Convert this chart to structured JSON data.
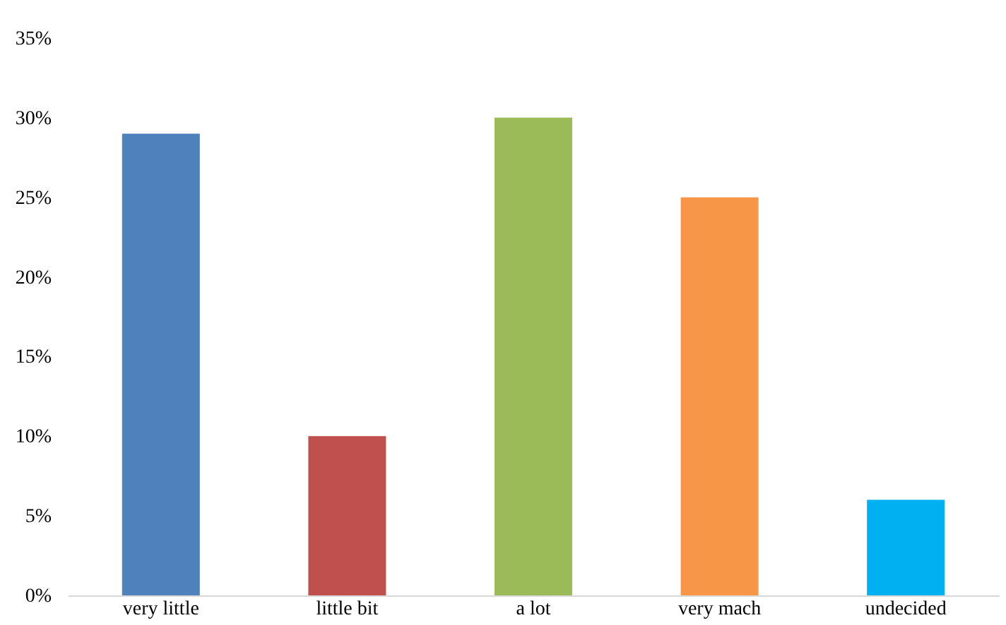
{
  "chart_data": {
    "type": "bar",
    "categories": [
      "very little",
      "little bit",
      "a lot",
      "very mach",
      "undecided"
    ],
    "values": [
      29,
      10,
      30,
      25,
      6
    ],
    "colors": [
      "#4f81bd",
      "#c0504d",
      "#9bbb59",
      "#f79646",
      "#00b0f0"
    ],
    "ylim": [
      0,
      35
    ],
    "yticks": [
      {
        "value": 0,
        "label": "0%"
      },
      {
        "value": 5,
        "label": "5%"
      },
      {
        "value": 10,
        "label": "10%"
      },
      {
        "value": 15,
        "label": "15%"
      },
      {
        "value": 20,
        "label": "20%"
      },
      {
        "value": 25,
        "label": "25%"
      },
      {
        "value": 30,
        "label": "30%"
      },
      {
        "value": 35,
        "label": "35%"
      }
    ],
    "grid": false
  }
}
